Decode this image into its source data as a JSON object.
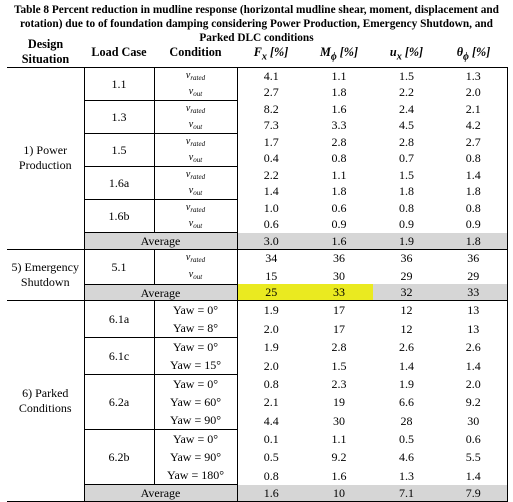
{
  "caption": "Table 8 Percent reduction in mudline response (horizontal mudline shear, moment, displacement and rotation) due to of foundation damping considering Power Production, Emergency Shutdown, and Parked DLC conditions",
  "headers": {
    "design_situation": "Design Situation",
    "load_case": "Load Case",
    "condition": "Condition",
    "fx": "Fx [%]",
    "mphi": "Mϕ [%]",
    "ux": "ux [%]",
    "theta": "θϕ [%]"
  },
  "sections": [
    {
      "design_situation": "1) Power Production",
      "load_cases": [
        {
          "id": "1.1",
          "rows": [
            {
              "condition": "vrated",
              "fx": "4.1",
              "mphi": "1.1",
              "ux": "1.5",
              "theta": "1.3"
            },
            {
              "condition": "vout",
              "fx": "2.7",
              "mphi": "1.8",
              "ux": "2.2",
              "theta": "2.0"
            }
          ]
        },
        {
          "id": "1.3",
          "rows": [
            {
              "condition": "vrated",
              "fx": "8.2",
              "mphi": "1.6",
              "ux": "2.4",
              "theta": "2.1"
            },
            {
              "condition": "vout",
              "fx": "7.3",
              "mphi": "3.3",
              "ux": "4.5",
              "theta": "4.2"
            }
          ]
        },
        {
          "id": "1.5",
          "rows": [
            {
              "condition": "vrated",
              "fx": "1.7",
              "mphi": "2.8",
              "ux": "2.8",
              "theta": "2.7"
            },
            {
              "condition": "vout",
              "fx": "0.4",
              "mphi": "0.8",
              "ux": "0.7",
              "theta": "0.8"
            }
          ]
        },
        {
          "id": "1.6a",
          "rows": [
            {
              "condition": "vrated",
              "fx": "2.2",
              "mphi": "1.1",
              "ux": "1.5",
              "theta": "1.4"
            },
            {
              "condition": "vout",
              "fx": "1.4",
              "mphi": "1.8",
              "ux": "1.8",
              "theta": "1.8"
            }
          ]
        },
        {
          "id": "1.6b",
          "rows": [
            {
              "condition": "vrated",
              "fx": "1.0",
              "mphi": "0.6",
              "ux": "0.8",
              "theta": "0.8"
            },
            {
              "condition": "vout",
              "fx": "0.6",
              "mphi": "0.9",
              "ux": "0.9",
              "theta": "0.9"
            }
          ]
        }
      ],
      "average": {
        "label": "Average",
        "fx": "3.0",
        "mphi": "1.6",
        "ux": "1.9",
        "theta": "1.8"
      }
    },
    {
      "design_situation": "5) Emergency Shutdown",
      "load_cases": [
        {
          "id": "5.1",
          "rows": [
            {
              "condition": "vrated",
              "fx": "34",
              "mphi": "36",
              "ux": "36",
              "theta": "36"
            },
            {
              "condition": "vout",
              "fx": "15",
              "mphi": "30",
              "ux": "29",
              "theta": "29"
            }
          ]
        }
      ],
      "average": {
        "label": "Average",
        "fx": "25",
        "mphi": "33",
        "ux": "32",
        "theta": "33"
      }
    },
    {
      "design_situation": "6) Parked Conditions",
      "load_cases": [
        {
          "id": "6.1a",
          "rows": [
            {
              "condition": "Yaw = 0°",
              "fx": "1.9",
              "mphi": "17",
              "ux": "12",
              "theta": "13"
            },
            {
              "condition": "Yaw = 8°",
              "fx": "2.0",
              "mphi": "17",
              "ux": "12",
              "theta": "13"
            }
          ]
        },
        {
          "id": "6.1c",
          "rows": [
            {
              "condition": "Yaw = 0°",
              "fx": "1.9",
              "mphi": "2.8",
              "ux": "2.6",
              "theta": "2.6"
            },
            {
              "condition": "Yaw = 15°",
              "fx": "2.0",
              "mphi": "1.5",
              "ux": "1.4",
              "theta": "1.4"
            }
          ]
        },
        {
          "id": "6.2a",
          "rows": [
            {
              "condition": "Yaw = 0°",
              "fx": "0.8",
              "mphi": "2.3",
              "ux": "1.9",
              "theta": "2.0"
            },
            {
              "condition": "Yaw = 60°",
              "fx": "2.1",
              "mphi": "19",
              "ux": "6.6",
              "theta": "9.2"
            },
            {
              "condition": "Yaw = 90°",
              "fx": "4.4",
              "mphi": "30",
              "ux": "28",
              "theta": "30"
            }
          ]
        },
        {
          "id": "6.2b",
          "rows": [
            {
              "condition": "Yaw = 0°",
              "fx": "0.1",
              "mphi": "1.1",
              "ux": "0.5",
              "theta": "0.6"
            },
            {
              "condition": "Yaw = 90°",
              "fx": "0.5",
              "mphi": "9.2",
              "ux": "4.6",
              "theta": "5.5"
            },
            {
              "condition": "Yaw = 180°",
              "fx": "0.8",
              "mphi": "1.6",
              "ux": "1.3",
              "theta": "1.4"
            }
          ]
        }
      ],
      "average": {
        "label": "Average",
        "fx": "1.6",
        "mphi": "10",
        "ux": "7.1",
        "theta": "7.9"
      }
    }
  ],
  "highlight_color": "#eaea20",
  "average_row_color": "#d6d6d6"
}
